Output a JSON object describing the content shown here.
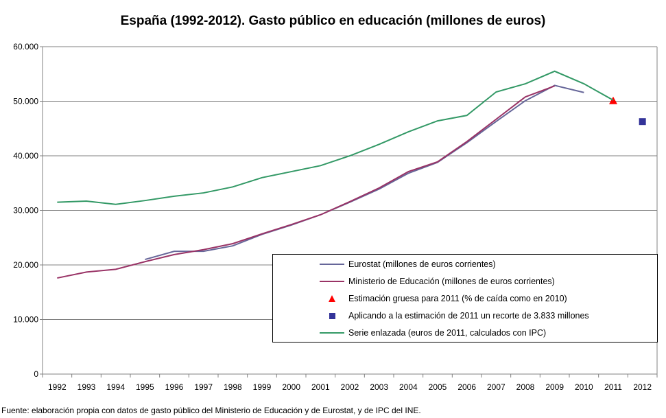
{
  "chart_data": {
    "type": "line",
    "title": "España (1992-2012). Gasto público en educación (millones de euros)",
    "source": "Fuente: elaboración propia con datos de gasto público del Ministerio de Educación y de Eurostat, y de IPC del INE.",
    "x": [
      1992,
      1993,
      1994,
      1995,
      1996,
      1997,
      1998,
      1999,
      2000,
      2001,
      2002,
      2003,
      2004,
      2005,
      2006,
      2007,
      2008,
      2009,
      2010,
      2011,
      2012
    ],
    "x_tick_labels": [
      "1992",
      "1993",
      "1994",
      "1995",
      "1996",
      "1997",
      "1998",
      "1999",
      "2000",
      "2001",
      "2002",
      "2003",
      "2004",
      "2005",
      "2006",
      "2007",
      "2008",
      "2009",
      "2010",
      "2011",
      "2012"
    ],
    "ylim": [
      0,
      60000
    ],
    "y_ticks": [
      0,
      10000,
      20000,
      30000,
      40000,
      50000,
      60000
    ],
    "y_tick_labels": [
      "0",
      "10.000",
      "20.000",
      "30.000",
      "40.000",
      "50.000",
      "60.000"
    ],
    "grid": true,
    "legend_placement": "bottom-right",
    "series": [
      {
        "name": "Eurostat (millones de euros corrientes)",
        "kind": "line",
        "color": "#666699",
        "values": [
          null,
          null,
          null,
          21000,
          22500,
          22500,
          23500,
          25600,
          27300,
          29200,
          31500,
          33900,
          36800,
          38800,
          42400,
          46300,
          50100,
          52900,
          51600,
          null,
          null
        ]
      },
      {
        "name": "Ministerio de Educación (millones de euros corrientes)",
        "kind": "line",
        "color": "#993366",
        "values": [
          17600,
          18700,
          19200,
          20600,
          21900,
          22800,
          23900,
          25700,
          27400,
          29200,
          31600,
          34100,
          37100,
          38900,
          42600,
          46700,
          50800,
          52800,
          null,
          null,
          null
        ]
      },
      {
        "name": "Estimación gruesa para 2011 (% de caída como en 2010)",
        "kind": "triangle",
        "color": "#ff0000",
        "values": [
          null,
          null,
          null,
          null,
          null,
          null,
          null,
          null,
          null,
          null,
          null,
          null,
          null,
          null,
          null,
          null,
          null,
          null,
          null,
          50100,
          null
        ]
      },
      {
        "name": "Aplicando a la estimación de 2011 un recorte de 3.833 millones",
        "kind": "square",
        "color": "#333399",
        "values": [
          null,
          null,
          null,
          null,
          null,
          null,
          null,
          null,
          null,
          null,
          null,
          null,
          null,
          null,
          null,
          null,
          null,
          null,
          null,
          null,
          46267
        ]
      },
      {
        "name": "Serie enlazada (euros de 2011, calculados con IPC)",
        "kind": "line",
        "color": "#339966",
        "values": [
          31500,
          31700,
          31100,
          31800,
          32600,
          33200,
          34300,
          36000,
          37100,
          38200,
          40000,
          42100,
          44400,
          46400,
          47400,
          51700,
          53200,
          55500,
          53200,
          50200,
          null
        ]
      }
    ]
  }
}
